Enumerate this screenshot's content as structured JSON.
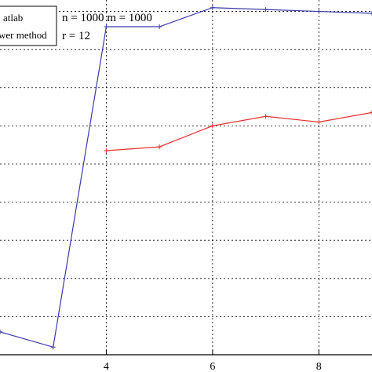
{
  "chart_data": {
    "type": "line",
    "title": "",
    "xlabel": "",
    "ylabel": "",
    "xlim": [
      2.0,
      9.0
    ],
    "ylim": [
      0,
      9.3
    ],
    "x_ticks": [
      4,
      6,
      8
    ],
    "x_tick_labels": [
      "4",
      "6",
      "8"
    ],
    "grid": true,
    "legend_placement": "top-left",
    "legend": [
      "atlab",
      "wer method"
    ],
    "annotations": [
      "n = 1000 m = 1000",
      "r = 12"
    ],
    "series": [
      {
        "name": "atlab",
        "color": "#3a3aa8",
        "marker": "plus",
        "x": [
          2,
          3,
          4,
          5,
          6,
          7,
          8,
          9
        ],
        "y": [
          0.6,
          0.2,
          8.6,
          8.6,
          9.1,
          9.05,
          9.0,
          8.95
        ]
      },
      {
        "name": "wer method",
        "color": "#e83030",
        "marker": "plus",
        "x": [
          4,
          5,
          6,
          7,
          8,
          9
        ],
        "y": [
          5.35,
          5.45,
          6.0,
          6.25,
          6.1,
          6.35
        ]
      }
    ]
  }
}
